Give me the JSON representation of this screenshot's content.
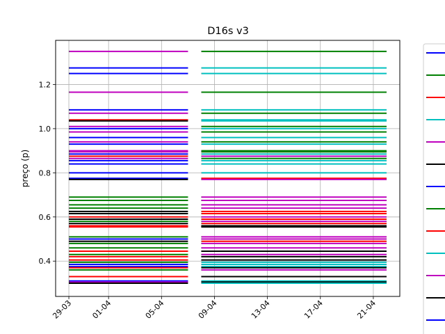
{
  "chart_data": {
    "type": "line",
    "title": "D16s v3",
    "ylabel": "preço (p)",
    "xlabel": "",
    "x_range": [
      "2021-03-28",
      "2021-04-23"
    ],
    "ylim": [
      0.24,
      1.4
    ],
    "grid": true,
    "legend_placement": "right (clipped)",
    "x_ticks": [
      {
        "date": "2021-03-29",
        "label": "29-03"
      },
      {
        "date": "2021-04-01",
        "label": "01-04"
      },
      {
        "date": "2021-04-05",
        "label": "05-04"
      },
      {
        "date": "2021-04-09",
        "label": "09-04"
      },
      {
        "date": "2021-04-13",
        "label": "13-04"
      },
      {
        "date": "2021-04-17",
        "label": "17-04"
      },
      {
        "date": "2021-04-21",
        "label": "21-04"
      }
    ],
    "y_ticks": [
      {
        "value": 0.4,
        "label": "0.4"
      },
      {
        "value": 0.6,
        "label": "0.6"
      },
      {
        "value": 0.8,
        "label": "0.8"
      },
      {
        "value": 1.0,
        "label": "1.0"
      },
      {
        "value": 1.2,
        "label": "1.2"
      }
    ],
    "colors": [
      "#0000ff",
      "#008000",
      "#ff0000",
      "#00bfbf",
      "#bf00bf",
      "#000000"
    ],
    "series": [
      {
        "segment": 1,
        "x": [
          "2021-03-29",
          "2021-04-07"
        ],
        "levels": [
          {
            "y": 1.35,
            "color": "#bf00bf"
          },
          {
            "y": 1.275,
            "color": "#0000ff"
          },
          {
            "y": 1.25,
            "color": "#0000ff"
          },
          {
            "y": 1.165,
            "color": "#bf00bf"
          },
          {
            "y": 1.085,
            "color": "#0000ff"
          },
          {
            "y": 1.07,
            "color": "#bf00bf"
          },
          {
            "y": 1.04,
            "color": "#ff0000"
          },
          {
            "y": 1.035,
            "color": "#000000"
          },
          {
            "y": 1.01,
            "color": "#bf00bf"
          },
          {
            "y": 1.0,
            "color": "#0000ff"
          },
          {
            "y": 0.985,
            "color": "#bf00bf"
          },
          {
            "y": 0.96,
            "color": "#0000ff"
          },
          {
            "y": 0.94,
            "color": "#bf00bf"
          },
          {
            "y": 0.93,
            "color": "#0000ff"
          },
          {
            "y": 0.9,
            "color": "#bf00bf"
          },
          {
            "y": 0.895,
            "color": "#bf00bf"
          },
          {
            "y": 0.885,
            "color": "#0000ff"
          },
          {
            "y": 0.875,
            "color": "#ff0000"
          },
          {
            "y": 0.865,
            "color": "#bf00bf"
          },
          {
            "y": 0.855,
            "color": "#0000ff"
          },
          {
            "y": 0.84,
            "color": "#0000ff"
          },
          {
            "y": 0.8,
            "color": "#0000ff"
          },
          {
            "y": 0.775,
            "color": "#0000ff"
          },
          {
            "y": 0.77,
            "color": "#000000"
          },
          {
            "y": 0.69,
            "color": "#008000"
          },
          {
            "y": 0.675,
            "color": "#008000"
          },
          {
            "y": 0.655,
            "color": "#008000"
          },
          {
            "y": 0.64,
            "color": "#008000"
          },
          {
            "y": 0.625,
            "color": "#000000"
          },
          {
            "y": 0.615,
            "color": "#000000"
          },
          {
            "y": 0.6,
            "color": "#ff0000"
          },
          {
            "y": 0.59,
            "color": "#000000"
          },
          {
            "y": 0.58,
            "color": "#008000"
          },
          {
            "y": 0.57,
            "color": "#000000"
          },
          {
            "y": 0.56,
            "color": "#ff0000"
          },
          {
            "y": 0.555,
            "color": "#ff0000"
          },
          {
            "y": 0.51,
            "color": "#008000"
          },
          {
            "y": 0.5,
            "color": "#0000ff"
          },
          {
            "y": 0.49,
            "color": "#000000"
          },
          {
            "y": 0.48,
            "color": "#008000"
          },
          {
            "y": 0.46,
            "color": "#008000"
          },
          {
            "y": 0.445,
            "color": "#ff0000"
          },
          {
            "y": 0.43,
            "color": "#008000"
          },
          {
            "y": 0.42,
            "color": "#ff0000"
          },
          {
            "y": 0.405,
            "color": "#ff0000"
          },
          {
            "y": 0.395,
            "color": "#008000"
          },
          {
            "y": 0.385,
            "color": "#0000ff"
          },
          {
            "y": 0.375,
            "color": "#0000ff"
          },
          {
            "y": 0.37,
            "color": "#ff0000"
          },
          {
            "y": 0.36,
            "color": "#008000"
          },
          {
            "y": 0.33,
            "color": "#ff0000"
          },
          {
            "y": 0.31,
            "color": "#0000ff"
          },
          {
            "y": 0.305,
            "color": "#bf00bf"
          },
          {
            "y": 0.3,
            "color": "#000000"
          }
        ]
      },
      {
        "segment": 2,
        "x": [
          "2021-04-08",
          "2021-04-22"
        ],
        "levels": [
          {
            "y": 1.35,
            "color": "#008000"
          },
          {
            "y": 1.275,
            "color": "#00bfbf"
          },
          {
            "y": 1.25,
            "color": "#00bfbf"
          },
          {
            "y": 1.165,
            "color": "#008000"
          },
          {
            "y": 1.085,
            "color": "#00bfbf"
          },
          {
            "y": 1.07,
            "color": "#008000"
          },
          {
            "y": 1.04,
            "color": "#00bfbf"
          },
          {
            "y": 1.035,
            "color": "#00bfbf"
          },
          {
            "y": 1.01,
            "color": "#008000"
          },
          {
            "y": 1.0,
            "color": "#00bfbf"
          },
          {
            "y": 0.985,
            "color": "#008000"
          },
          {
            "y": 0.96,
            "color": "#00bfbf"
          },
          {
            "y": 0.94,
            "color": "#008000"
          },
          {
            "y": 0.93,
            "color": "#00bfbf"
          },
          {
            "y": 0.9,
            "color": "#008000"
          },
          {
            "y": 0.895,
            "color": "#008000"
          },
          {
            "y": 0.885,
            "color": "#00bfbf"
          },
          {
            "y": 0.875,
            "color": "#bf00bf"
          },
          {
            "y": 0.865,
            "color": "#008000"
          },
          {
            "y": 0.855,
            "color": "#00bfbf"
          },
          {
            "y": 0.84,
            "color": "#00bfbf"
          },
          {
            "y": 0.8,
            "color": "#00bfbf"
          },
          {
            "y": 0.775,
            "color": "#ff0000"
          },
          {
            "y": 0.77,
            "color": "#bf00bf"
          },
          {
            "y": 0.69,
            "color": "#bf00bf"
          },
          {
            "y": 0.675,
            "color": "#bf00bf"
          },
          {
            "y": 0.655,
            "color": "#bf00bf"
          },
          {
            "y": 0.64,
            "color": "#bf00bf"
          },
          {
            "y": 0.625,
            "color": "#ff0000"
          },
          {
            "y": 0.615,
            "color": "#ff0000"
          },
          {
            "y": 0.6,
            "color": "#bf00bf"
          },
          {
            "y": 0.59,
            "color": "#ff0000"
          },
          {
            "y": 0.58,
            "color": "#bf00bf"
          },
          {
            "y": 0.57,
            "color": "#ff0000"
          },
          {
            "y": 0.56,
            "color": "#000000"
          },
          {
            "y": 0.555,
            "color": "#000000"
          },
          {
            "y": 0.51,
            "color": "#bf00bf"
          },
          {
            "y": 0.5,
            "color": "#bf00bf"
          },
          {
            "y": 0.49,
            "color": "#ff0000"
          },
          {
            "y": 0.48,
            "color": "#bf00bf"
          },
          {
            "y": 0.46,
            "color": "#bf00bf"
          },
          {
            "y": 0.445,
            "color": "#000000"
          },
          {
            "y": 0.43,
            "color": "#bf00bf"
          },
          {
            "y": 0.42,
            "color": "#000000"
          },
          {
            "y": 0.405,
            "color": "#000000"
          },
          {
            "y": 0.395,
            "color": "#00bfbf"
          },
          {
            "y": 0.385,
            "color": "#00bfbf"
          },
          {
            "y": 0.375,
            "color": "#00bfbf"
          },
          {
            "y": 0.37,
            "color": "#000000"
          },
          {
            "y": 0.36,
            "color": "#bf00bf"
          },
          {
            "y": 0.33,
            "color": "#000000"
          },
          {
            "y": 0.31,
            "color": "#00bfbf"
          },
          {
            "y": 0.305,
            "color": "#000000"
          },
          {
            "y": 0.3,
            "color": "#00bfbf"
          }
        ]
      }
    ],
    "legend": {
      "labels": [],
      "colors": [
        "#0000ff",
        "#008000",
        "#ff0000",
        "#00bfbf",
        "#bf00bf",
        "#000000",
        "#0000ff",
        "#008000",
        "#ff0000",
        "#00bfbf",
        "#bf00bf",
        "#000000",
        "#0000ff"
      ]
    }
  }
}
